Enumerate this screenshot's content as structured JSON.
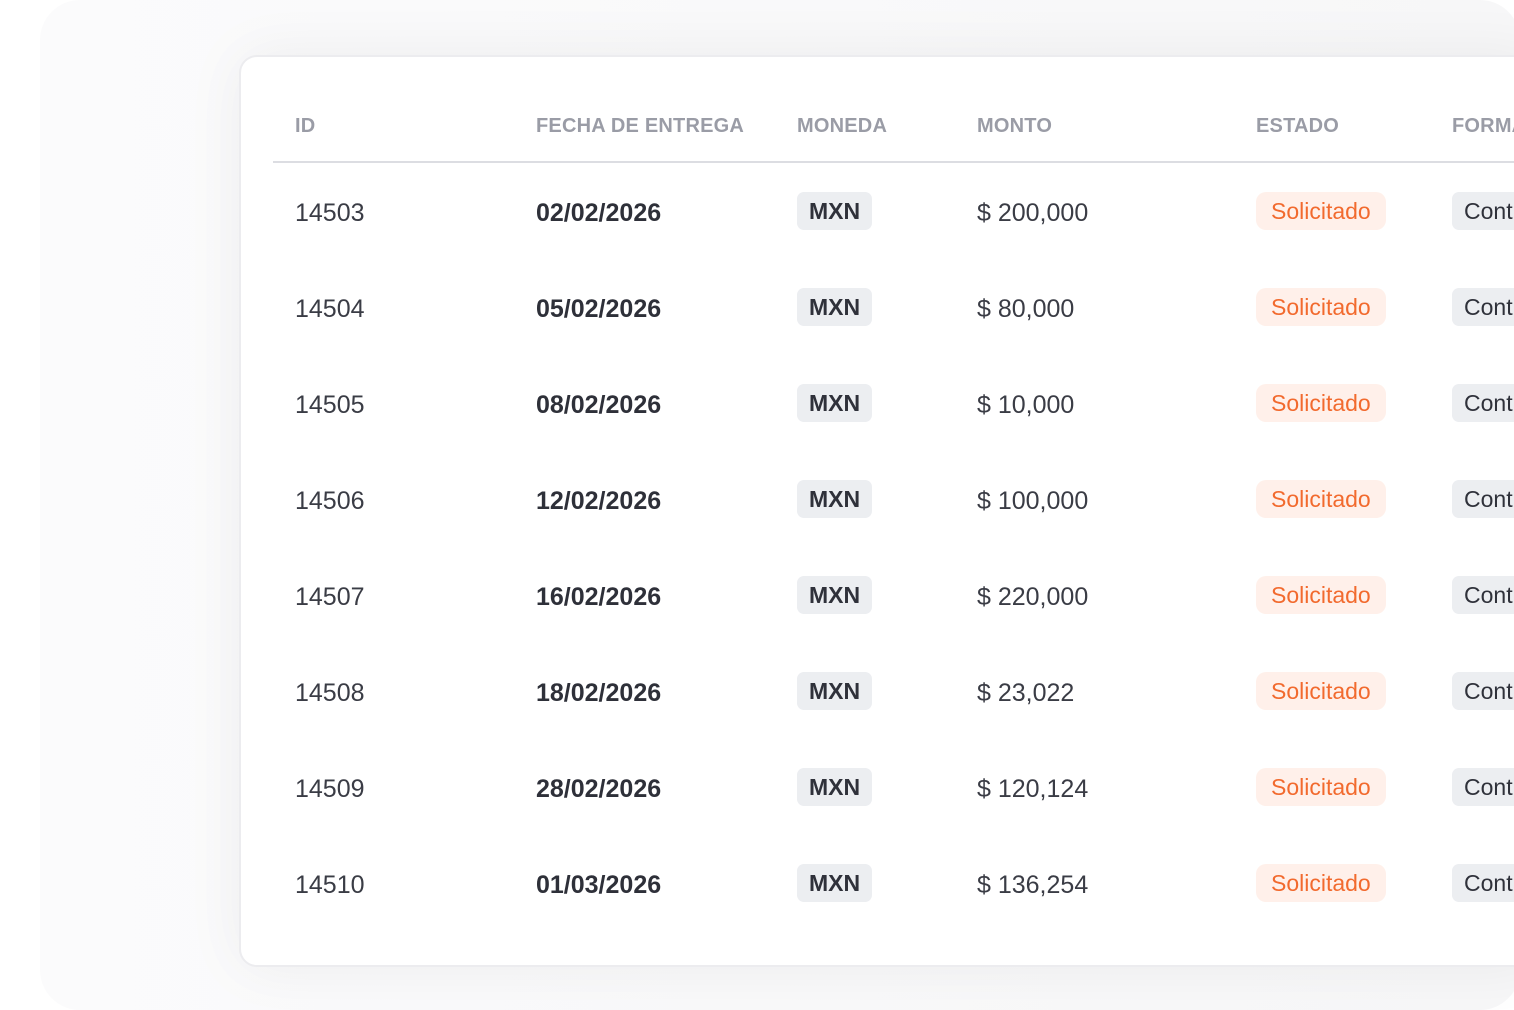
{
  "table": {
    "headers": {
      "id": "ID",
      "delivery_date": "FECHA DE ENTREGA",
      "currency": "MONEDA",
      "amount": "MONTO",
      "status": "ESTADO",
      "form": "FORMA"
    },
    "rows": [
      {
        "id": "14503",
        "date": "02/02/2026",
        "currency": "MXN",
        "amount": "$ 200,000",
        "status": "Solicitado",
        "form": "Cont"
      },
      {
        "id": "14504",
        "date": "05/02/2026",
        "currency": "MXN",
        "amount": "$ 80,000",
        "status": "Solicitado",
        "form": "Cont"
      },
      {
        "id": "14505",
        "date": "08/02/2026",
        "currency": "MXN",
        "amount": "$ 10,000",
        "status": "Solicitado",
        "form": "Cont"
      },
      {
        "id": "14506",
        "date": "12/02/2026",
        "currency": "MXN",
        "amount": "$ 100,000",
        "status": "Solicitado",
        "form": "Cont"
      },
      {
        "id": "14507",
        "date": "16/02/2026",
        "currency": "MXN",
        "amount": "$ 220,000",
        "status": "Solicitado",
        "form": "Cont"
      },
      {
        "id": "14508",
        "date": "18/02/2026",
        "currency": "MXN",
        "amount": "$ 23,022",
        "status": "Solicitado",
        "form": "Cont"
      },
      {
        "id": "14509",
        "date": "28/02/2026",
        "currency": "MXN",
        "amount": "$ 120,124",
        "status": "Solicitado",
        "form": "Cont"
      },
      {
        "id": "14510",
        "date": "01/03/2026",
        "currency": "MXN",
        "amount": "$ 136,254",
        "status": "Solicitado",
        "form": "Cont"
      }
    ]
  },
  "colors": {
    "status_text": "#f26a2e",
    "status_bg": "#fff0ea",
    "currency_bg": "#eceef1",
    "header_text": "#9a9ca6"
  }
}
